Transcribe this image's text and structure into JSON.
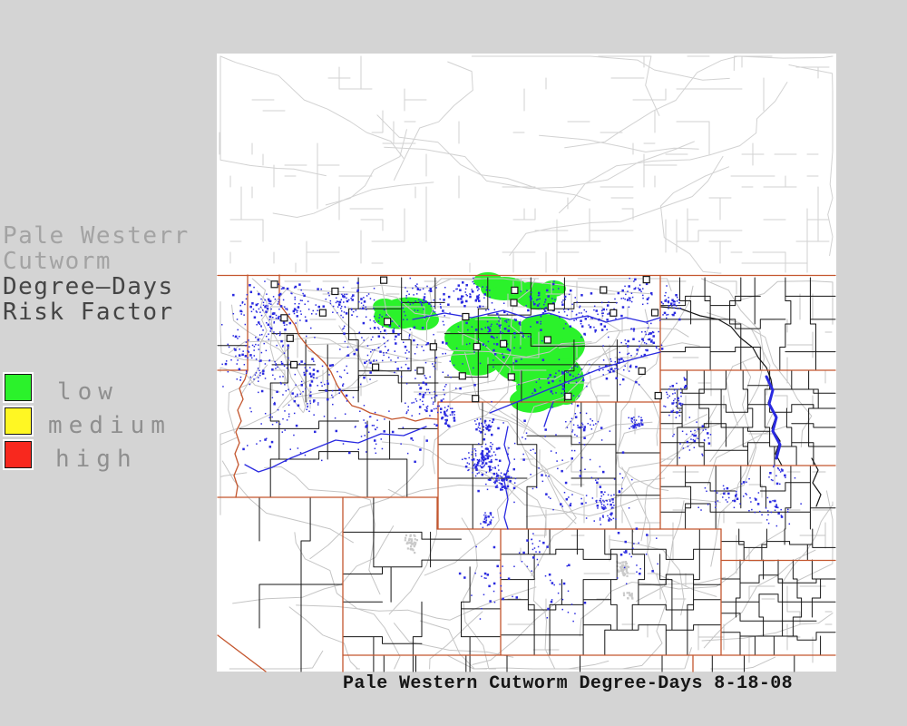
{
  "page": {
    "background_color": "#d4d4d4"
  },
  "side_panel": {
    "title_lines": [
      {
        "text": "Pale Westerr"
      },
      {
        "text": "Cutworm"
      },
      {
        "text": "Degree—Days"
      },
      {
        "text": "Risk Factor"
      }
    ],
    "legend": {
      "items": [
        {
          "label": "low",
          "color": "#2bf22b"
        },
        {
          "label": "medium",
          "color": "#fff723"
        },
        {
          "label": "high",
          "color": "#f8281e"
        }
      ]
    }
  },
  "map": {
    "colors": {
      "map_background": "#ffffff",
      "state_border": "#c4562e",
      "county_border": "#161616",
      "road": "#c5c5c5",
      "canada_road": "#d2d2d2",
      "water": "#2a2ae0",
      "risk_low": "#2bf22b",
      "urban": "#c9c9c9",
      "station_marker": "#161616"
    }
  },
  "caption": {
    "text": "Pale Western Cutworm Degree-Days 8-18-08"
  }
}
